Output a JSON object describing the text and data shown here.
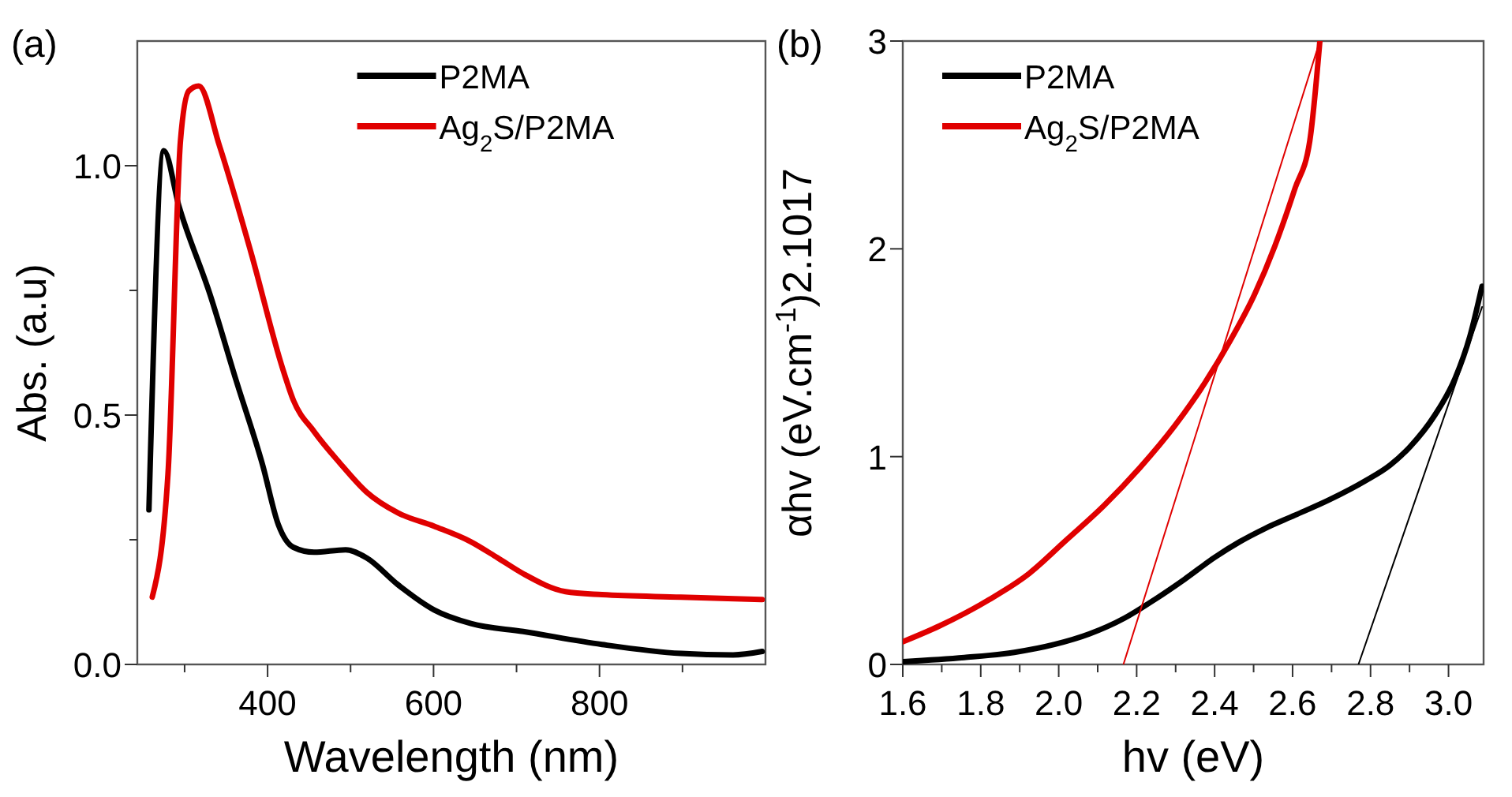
{
  "chart_data": [
    {
      "type": "line",
      "title": "(a)",
      "xlabel": "Wavelength (nm)",
      "ylabel": "Abs. (a.u)",
      "xlim": [
        243,
        1000
      ],
      "ylim": [
        0,
        1.25
      ],
      "xticks": [
        {
          "value": 300,
          "label": null
        },
        400,
        {
          "value": 500,
          "label": null
        },
        600,
        {
          "value": 700,
          "label": null
        },
        800,
        {
          "value": 900,
          "label": null
        }
      ],
      "yticks": [
        {
          "value": 0,
          "label": "0.0"
        },
        {
          "value": 0.25,
          "label": null
        },
        0.5,
        {
          "value": 0.75,
          "label": null
        },
        {
          "value": 1,
          "label": "1.0"
        }
      ],
      "legend": "top right",
      "line_style": "solid",
      "series": [
        {
          "name": "P2MA",
          "color": "#000000",
          "x": [
            257,
            275,
            293,
            331,
            362,
            394,
            413,
            431,
            456,
            494,
            519,
            557,
            601,
            645,
            708,
            803,
            898,
            961,
            996
          ],
          "values": [
            0.31,
            1.03,
            0.92,
            0.74,
            0.57,
            0.4,
            0.28,
            0.235,
            0.225,
            0.23,
            0.214,
            0.16,
            0.109,
            0.082,
            0.066,
            0.04,
            0.022,
            0.019,
            0.026
          ]
        },
        {
          "name": "Ag$_{2}$S/P2MA",
          "color": "#e00000",
          "x": [
            261,
            280,
            295,
            305,
            317,
            342,
            380,
            418,
            431,
            456,
            487,
            519,
            557,
            601,
            645,
            677,
            708,
            759,
            803,
            898,
            996
          ],
          "values": [
            0.135,
            0.383,
            1.05,
            1.15,
            1.16,
            1.04,
            0.826,
            0.594,
            0.53,
            0.467,
            0.404,
            0.346,
            0.304,
            0.277,
            0.246,
            0.214,
            0.182,
            0.146,
            0.14,
            0.135,
            0.13
          ]
        }
      ]
    },
    {
      "type": "line",
      "title": "(b)",
      "xlabel": "hv (eV)",
      "ylabel": "αhv (eV.cm$^{-1}$)2.1017",
      "xlim": [
        1.6,
        3.09
      ],
      "ylim": [
        0,
        3
      ],
      "xticks": [
        1.6,
        {
          "value": 1.7,
          "label": null
        },
        1.8,
        {
          "value": 1.9,
          "label": null
        },
        {
          "value": 2,
          "label": "2.0"
        },
        {
          "value": 2.1,
          "label": null
        },
        2.2,
        {
          "value": 2.3,
          "label": null
        },
        2.4,
        {
          "value": 2.5,
          "label": null
        },
        2.6,
        {
          "value": 2.7,
          "label": null
        },
        2.8,
        {
          "value": 2.9,
          "label": null
        },
        {
          "value": 3,
          "label": "3.0"
        }
      ],
      "yticks": [
        0,
        1,
        2,
        3
      ],
      "legend": "top left",
      "line_style": "solid",
      "series": [
        {
          "name": "P2MA",
          "color": "#000000",
          "x": [
            1.6,
            1.758,
            1.886,
            1.989,
            2.079,
            2.169,
            2.246,
            2.323,
            2.4,
            2.464,
            2.529,
            2.606,
            2.696,
            2.786,
            2.85,
            2.901,
            2.965,
            3.017,
            3.055,
            3.086
          ],
          "values": [
            0.013,
            0.033,
            0.058,
            0.096,
            0.147,
            0.223,
            0.312,
            0.41,
            0.515,
            0.59,
            0.654,
            0.718,
            0.794,
            0.883,
            0.959,
            1.047,
            1.2,
            1.377,
            1.58,
            1.82
          ]
        },
        {
          "name": "Ag$_{2}$S/P2MA",
          "color": "#e00000",
          "x": [
            1.6,
            1.694,
            1.822,
            1.925,
            2.015,
            2.118,
            2.208,
            2.298,
            2.374,
            2.439,
            2.503,
            2.554,
            2.606,
            2.644,
            2.67
          ],
          "values": [
            0.109,
            0.185,
            0.312,
            0.439,
            0.591,
            0.768,
            0.946,
            1.149,
            1.352,
            1.555,
            1.783,
            2.011,
            2.29,
            2.518,
            3.0
          ]
        },
        {
          "type": "line",
          "color": "#e00000",
          "x": [
            2.166,
            2.67
          ],
          "values": [
            0,
            3
          ]
        },
        {
          "type": "line",
          "color": "#000000",
          "x": [
            2.769,
            3.086
          ],
          "values": [
            0,
            1.72
          ]
        }
      ]
    }
  ]
}
